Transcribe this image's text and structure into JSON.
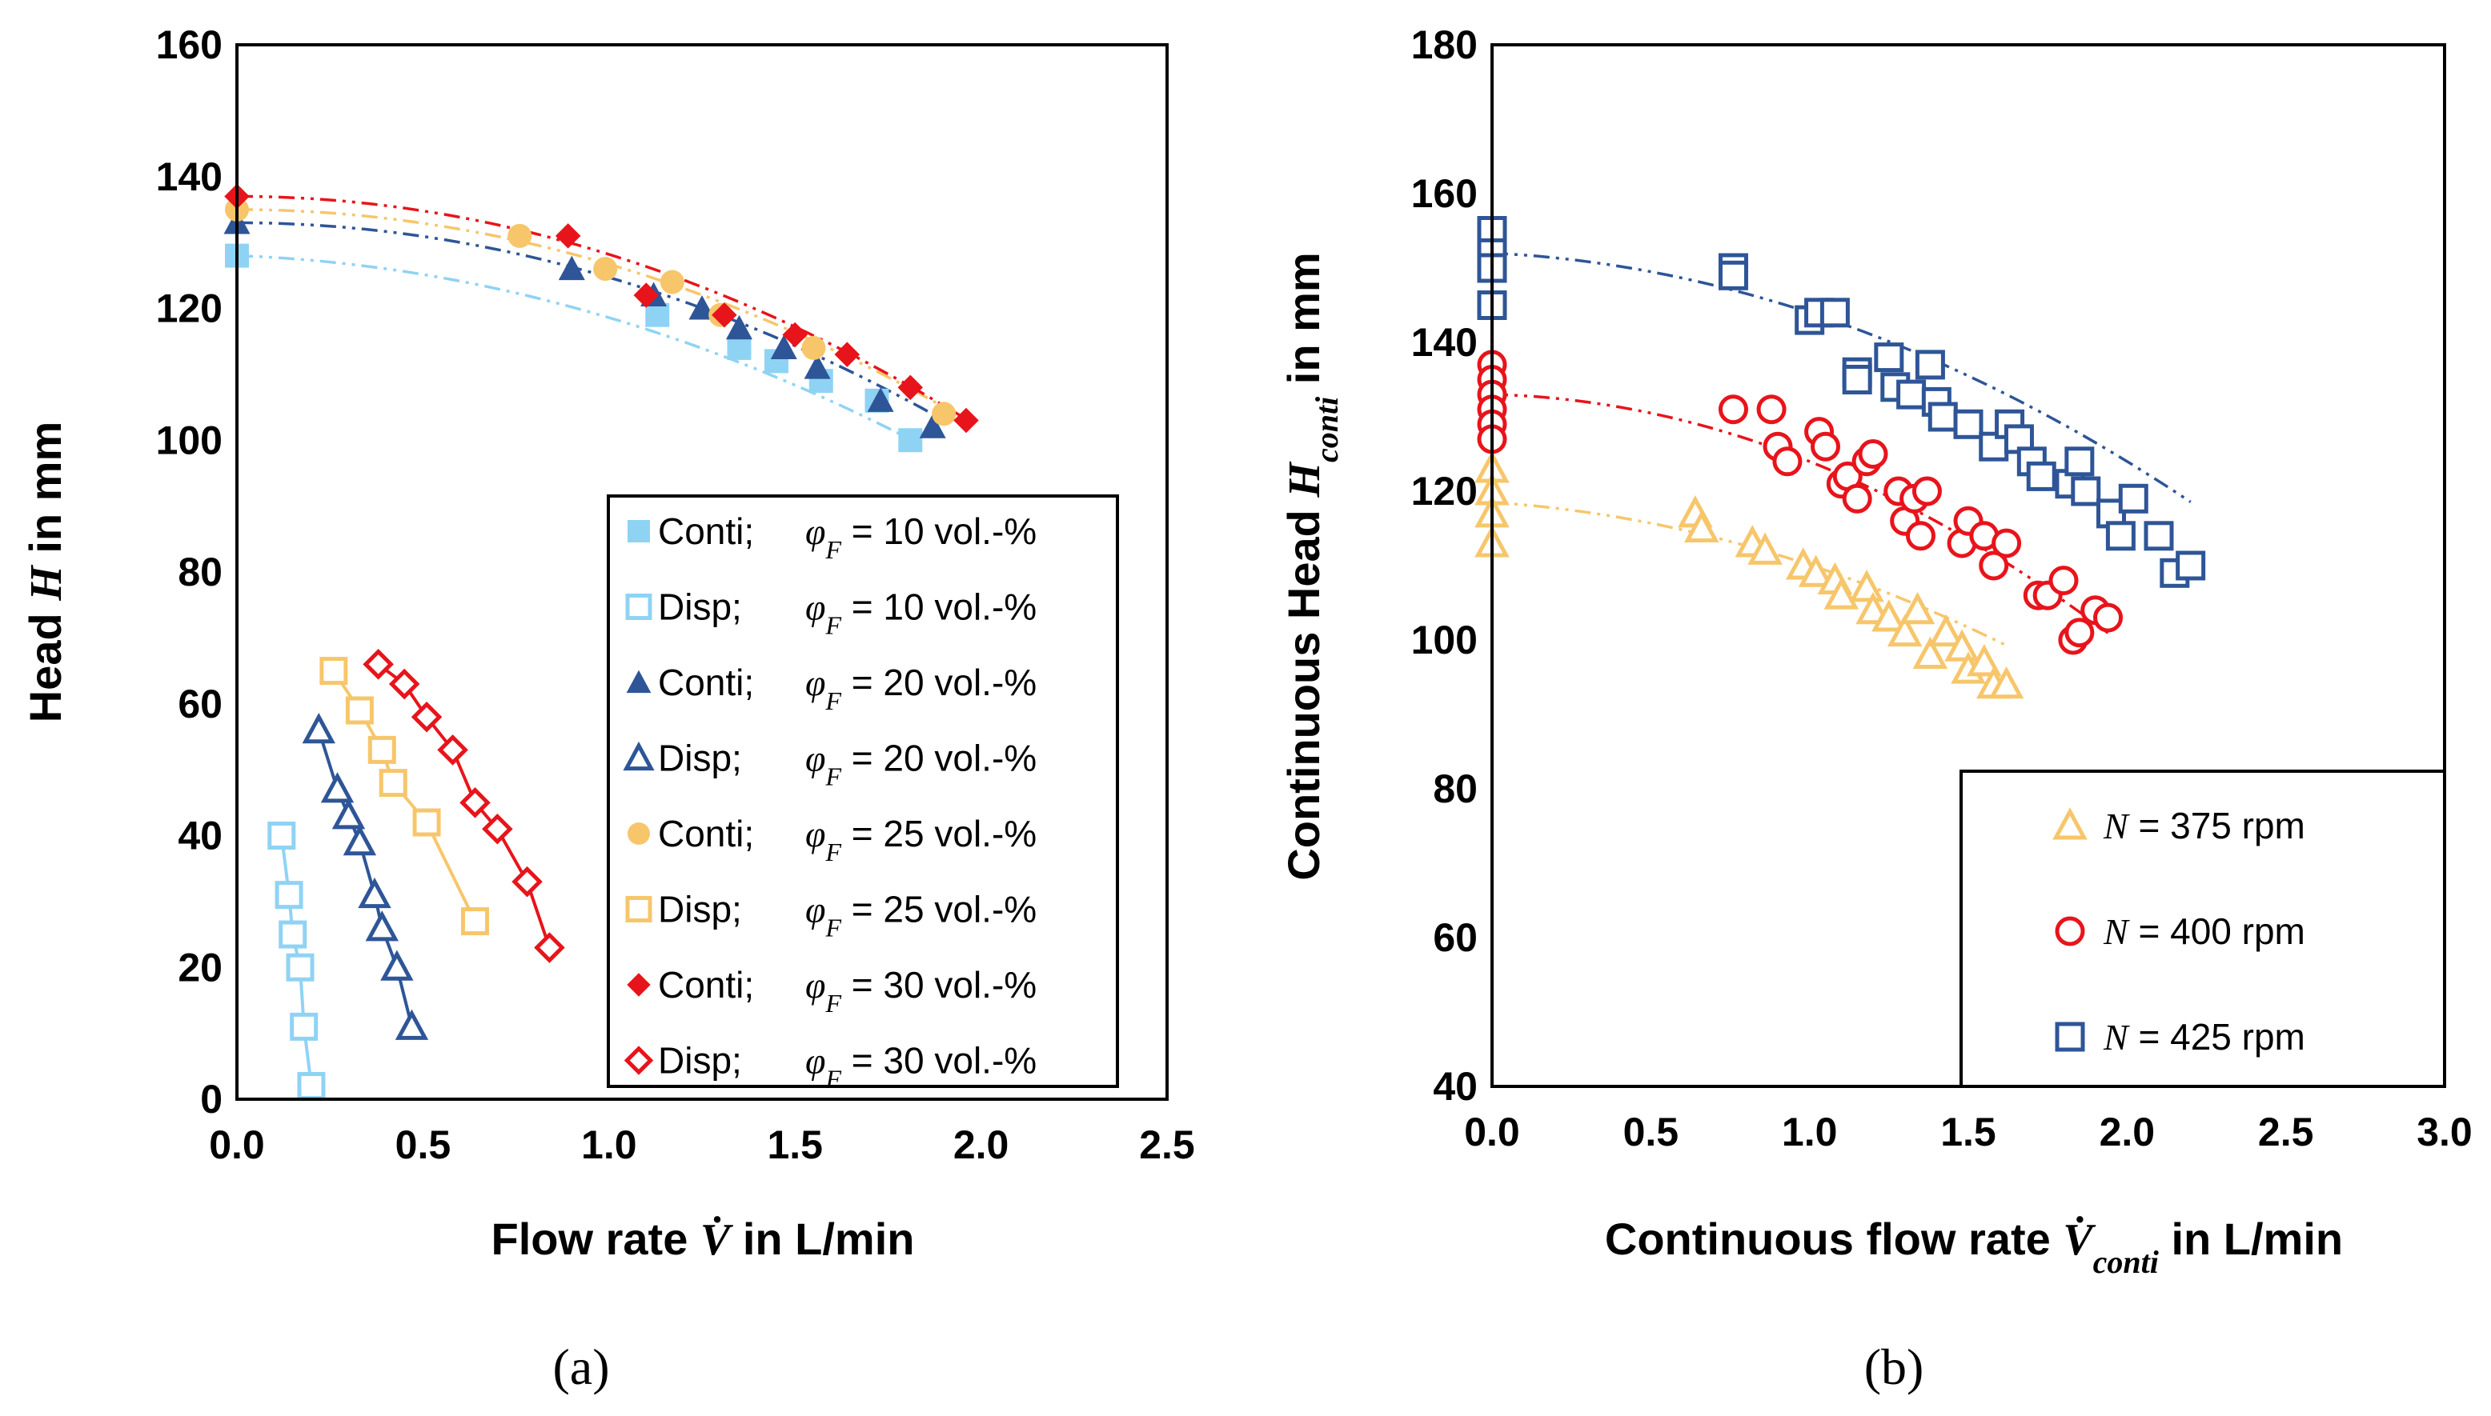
{
  "colors": {
    "light_blue": "#8fd3f4",
    "dark_blue": "#2e5597",
    "orange": "#f7c66b",
    "red": "#e8141b"
  },
  "chart_data": [
    {
      "type": "scatter",
      "panel_label": "(a)",
      "xlabel_prefix": "Flow rate ",
      "xlabel_symbol": "V̇",
      "xlabel_suffix": " in L/min",
      "ylabel_prefix": "Head ",
      "ylabel_symbol": "H",
      "ylabel_suffix": " in mm",
      "xlim": [
        0,
        2.5
      ],
      "ylim": [
        0,
        160
      ],
      "xticks": [
        "0.0",
        "0.5",
        "1.0",
        "1.5",
        "2.0",
        "2.5"
      ],
      "yticks": [
        "0",
        "20",
        "40",
        "60",
        "80",
        "100",
        "120",
        "140",
        "160"
      ],
      "legend_position": "bottom-right",
      "series": [
        {
          "name": "Conti",
          "phi": "10 vol.-%",
          "color": "light_blue",
          "marker": "square-filled",
          "line": "dash-dot",
          "x": [
            0.0,
            1.13,
            1.35,
            1.45,
            1.57,
            1.72,
            1.81
          ],
          "y": [
            128,
            119,
            114,
            112,
            109,
            106,
            100
          ],
          "fit": [
            128,
            -2.0,
            -7.4
          ]
        },
        {
          "name": "Disp",
          "phi": "10 vol.-%",
          "color": "light_blue",
          "marker": "square-open",
          "line": "solid",
          "x": [
            0.12,
            0.14,
            0.15,
            0.17,
            0.18,
            0.2
          ],
          "y": [
            40,
            31,
            25,
            20,
            11,
            2
          ]
        },
        {
          "name": "Conti",
          "phi": "20 vol.-%",
          "color": "dark_blue",
          "marker": "triangle-filled",
          "line": "dash-dot",
          "x": [
            0.0,
            0.9,
            1.12,
            1.25,
            1.35,
            1.47,
            1.56,
            1.73,
            1.87
          ],
          "y": [
            133,
            126,
            122,
            120,
            117,
            114,
            111,
            106,
            102
          ],
          "fit": [
            133,
            0.0,
            -8.3
          ]
        },
        {
          "name": "Disp",
          "phi": "20 vol.-%",
          "color": "dark_blue",
          "marker": "triangle-open",
          "line": "solid",
          "x": [
            0.22,
            0.27,
            0.3,
            0.33,
            0.37,
            0.39,
            0.43,
            0.47
          ],
          "y": [
            56,
            47,
            43,
            39,
            31,
            26,
            20,
            11
          ]
        },
        {
          "name": "Conti",
          "phi": "25 vol.-%",
          "color": "orange",
          "marker": "circle-filled",
          "line": "dash-dot",
          "x": [
            0.0,
            0.76,
            0.99,
            1.17,
            1.3,
            1.55,
            1.9
          ],
          "y": [
            135,
            131,
            126,
            124,
            119,
            114,
            104
          ],
          "fit": [
            135,
            0.0,
            -8.3
          ]
        },
        {
          "name": "Disp",
          "phi": "25 vol.-%",
          "color": "orange",
          "marker": "square-open",
          "line": "solid",
          "x": [
            0.26,
            0.33,
            0.39,
            0.42,
            0.51,
            0.64
          ],
          "y": [
            65,
            59,
            53,
            48,
            42,
            27
          ]
        },
        {
          "name": "Conti",
          "phi": "30 vol.-%",
          "color": "red",
          "marker": "diamond-filled",
          "line": "dash-dot",
          "x": [
            0.0,
            0.89,
            1.1,
            1.31,
            1.5,
            1.64,
            1.81,
            1.96
          ],
          "y": [
            137,
            131,
            122,
            119,
            116,
            113,
            108,
            103
          ],
          "fit": [
            137,
            0.0,
            -8.8
          ]
        },
        {
          "name": "Disp",
          "phi": "30 vol.-%",
          "color": "red",
          "marker": "diamond-open",
          "line": "solid",
          "x": [
            0.38,
            0.45,
            0.51,
            0.58,
            0.64,
            0.7,
            0.78,
            0.84
          ],
          "y": [
            66,
            63,
            58,
            53,
            45,
            41,
            33,
            23
          ]
        }
      ]
    },
    {
      "type": "scatter",
      "panel_label": "(b)",
      "xlabel_prefix": "Continuous flow rate ",
      "xlabel_symbol": "V̇",
      "xlabel_sub": "conti",
      "xlabel_suffix": " in L/min",
      "ylabel_prefix": "Continuous Head ",
      "ylabel_symbol": "H",
      "ylabel_sub": "conti",
      "ylabel_suffix": " in mm",
      "xlim": [
        0,
        3.0
      ],
      "ylim": [
        40,
        180
      ],
      "xticks": [
        "0.0",
        "0.5",
        "1.0",
        "1.5",
        "2.0",
        "2.5",
        "3.0"
      ],
      "yticks": [
        "40",
        "60",
        "80",
        "100",
        "120",
        "140",
        "160",
        "180"
      ],
      "legend_position": "bottom-right",
      "series": [
        {
          "name": "375 rpm",
          "color": "orange",
          "marker": "triangle-open",
          "x": [
            0.0,
            0.0,
            0.0,
            0.0,
            0.64,
            0.66,
            0.82,
            0.86,
            0.98,
            1.02,
            1.08,
            1.1,
            1.18,
            1.2,
            1.25,
            1.3,
            1.34,
            1.38,
            1.43,
            1.48,
            1.5,
            1.55,
            1.58,
            1.62
          ],
          "y": [
            123,
            120,
            117,
            113,
            117,
            115,
            113,
            112,
            110,
            109,
            108,
            106,
            107,
            104,
            103,
            101,
            104,
            98,
            101,
            99,
            96,
            97,
            94,
            94
          ],
          "fit": [
            118.5,
            -2.8,
            -5.6
          ]
        },
        {
          "name": "400 rpm",
          "color": "red",
          "marker": "circle-open",
          "x": [
            0.0,
            0.0,
            0.0,
            0.0,
            0.0,
            0.0,
            0.76,
            0.88,
            0.9,
            0.93,
            1.03,
            1.05,
            1.1,
            1.12,
            1.15,
            1.18,
            1.2,
            1.28,
            1.3,
            1.33,
            1.35,
            1.37,
            1.48,
            1.5,
            1.55,
            1.58,
            1.62,
            1.72,
            1.75,
            1.8,
            1.83,
            1.85,
            1.9,
            1.94
          ],
          "y": [
            137,
            135,
            133,
            131,
            129,
            127,
            131,
            131,
            126,
            124,
            128,
            126,
            121,
            122,
            119,
            124,
            125,
            120,
            116,
            119,
            114,
            120,
            113,
            116,
            114,
            110,
            113,
            106,
            106,
            108,
            100,
            101,
            104,
            103
          ],
          "fit": [
            133,
            -1.0,
            -8.0
          ]
        },
        {
          "name": "425 rpm",
          "color": "dark_blue",
          "marker": "square-open",
          "x": [
            0.0,
            0.0,
            0.0,
            0.0,
            0.76,
            0.76,
            1.0,
            1.03,
            1.08,
            1.15,
            1.15,
            1.25,
            1.27,
            1.32,
            1.38,
            1.4,
            1.42,
            1.5,
            1.58,
            1.63,
            1.66,
            1.7,
            1.73,
            1.82,
            1.85,
            1.87,
            1.95,
            1.98,
            2.02,
            2.1,
            2.15,
            2.2
          ],
          "y": [
            155,
            152,
            150,
            145,
            150,
            149,
            143,
            144,
            144,
            136,
            135,
            138,
            134,
            133,
            137,
            132,
            130,
            129,
            126,
            129,
            127,
            124,
            122,
            121,
            124,
            120,
            117,
            114,
            119,
            114,
            109,
            110
          ],
          "fit": [
            152,
            -2.0,
            -6.0
          ]
        }
      ]
    }
  ],
  "legend_a": [
    {
      "type": "Conti;",
      "phi_label": "φ",
      "phi_sub": "F",
      "value": " = 10 vol.-%"
    },
    {
      "type": "Disp;",
      "phi_label": "φ",
      "phi_sub": "F",
      "value": " = 10 vol.-%"
    },
    {
      "type": "Conti;",
      "phi_label": "φ",
      "phi_sub": "F",
      "value": " = 20 vol.-%"
    },
    {
      "type": "Disp;",
      "phi_label": "φ",
      "phi_sub": "F",
      "value": " = 20 vol.-%"
    },
    {
      "type": "Conti;",
      "phi_label": "φ",
      "phi_sub": "F",
      "value": " = 25 vol.-%"
    },
    {
      "type": "Disp;",
      "phi_label": "φ",
      "phi_sub": "F",
      "value": " = 25 vol.-%"
    },
    {
      "type": "Conti;",
      "phi_label": "φ",
      "phi_sub": "F",
      "value": " = 30 vol.-%"
    },
    {
      "type": "Disp;",
      "phi_label": "φ",
      "phi_sub": "F",
      "value": " = 30 vol.-%"
    }
  ],
  "legend_b": [
    {
      "symbol": "N",
      "value": " = 375 rpm"
    },
    {
      "symbol": "N",
      "value": " = 400 rpm"
    },
    {
      "symbol": "N",
      "value": " = 425 rpm"
    }
  ]
}
